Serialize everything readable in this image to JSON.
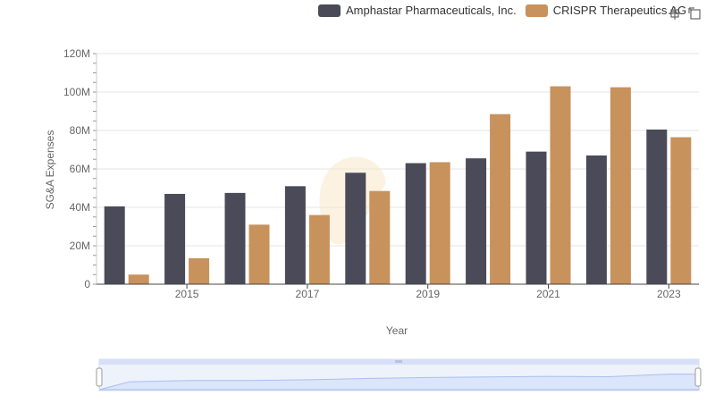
{
  "legend": {
    "items": [
      {
        "label": "Amphastar Pharmaceuticals, Inc.",
        "color": "#4a4a58"
      },
      {
        "label": "CRISPR Therapeutics AG",
        "color": "#c8925c"
      }
    ]
  },
  "toolbar": {
    "icons": [
      "zoom-icon",
      "restore-icon"
    ]
  },
  "chart_data": {
    "type": "bar",
    "categories": [
      "2014",
      "2015",
      "2016",
      "2017",
      "2018",
      "2019",
      "2020",
      "2021",
      "2022",
      "2023"
    ],
    "x_tick_labels": [
      "2015",
      "2017",
      "2019",
      "2021",
      "2023"
    ],
    "y_tick_labels": [
      "0",
      "20M",
      "40M",
      "60M",
      "80M",
      "100M",
      "120M"
    ],
    "ylim": [
      0,
      120000000
    ],
    "xlabel": "Year",
    "ylabel": "SG&A Expenses",
    "series": [
      {
        "name": "Amphastar Pharmaceuticals, Inc.",
        "color": "#4a4a58",
        "values": [
          40500000,
          47000000,
          47500000,
          51000000,
          58000000,
          63000000,
          65500000,
          69000000,
          67000000,
          80500000
        ]
      },
      {
        "name": "CRISPR Therapeutics AG",
        "color": "#c8925c",
        "values": [
          5000000,
          13500000,
          31000000,
          36000000,
          48500000,
          63500000,
          88500000,
          103000000,
          102500000,
          76500000
        ]
      }
    ],
    "grid": true,
    "legend_position": "top-right"
  }
}
